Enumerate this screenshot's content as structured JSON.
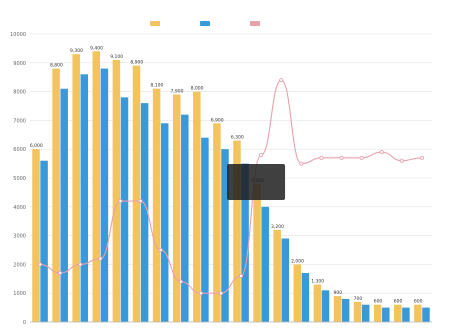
{
  "chart_data": {
    "type": "bar",
    "title": "",
    "categories": [
      "",
      "",
      "",
      "",
      "",
      "",
      "",
      "",
      "",
      "",
      "",
      "",
      "",
      "",
      "",
      "",
      "",
      "",
      "",
      ""
    ],
    "series": [
      {
        "type": "bar",
        "color": "#f3c45e",
        "values": [
          6000,
          8800,
          9300,
          9400,
          9100,
          8900,
          8100,
          7900,
          8000,
          6900,
          6300,
          4800,
          3200,
          2000,
          1300,
          900,
          700,
          600,
          600,
          600
        ]
      },
      {
        "type": "bar",
        "color": "#3a9ad9",
        "values": [
          5600,
          8100,
          8600,
          8800,
          7800,
          7600,
          6900,
          7200,
          6400,
          6000,
          5500,
          4000,
          2900,
          1700,
          1100,
          800,
          600,
          500,
          500,
          500
        ]
      },
      {
        "type": "line",
        "color": "#e6a1ad",
        "values": [
          2000,
          1700,
          2000,
          2200,
          4200,
          4200,
          2500,
          1400,
          1000,
          1000,
          1600,
          5800,
          8400,
          5500,
          5700,
          5700,
          5700,
          5900,
          5600,
          5700
        ]
      }
    ],
    "bar_labels": [
      "6,000",
      "8,800",
      "9,300",
      "9,400",
      "9,100",
      "8,900",
      "8,100",
      "7,900",
      "8,000",
      "6,900",
      "6,300",
      "4,800",
      "3,200",
      "2,000",
      "1,300",
      "900",
      "700",
      "600",
      "600",
      "600"
    ],
    "ylim": [
      0,
      10000
    ],
    "y_ticks": [
      "0",
      "1000",
      "2000",
      "3000",
      "4000",
      "5000",
      "6000",
      "7000",
      "8000",
      "9000",
      "10000"
    ],
    "grid": true,
    "legend": "top-center",
    "legend_entries": [
      "",
      "",
      ""
    ],
    "tooltip": {
      "category_index": 10,
      "lines": [
        "",
        "",
        "",
        ""
      ]
    }
  }
}
